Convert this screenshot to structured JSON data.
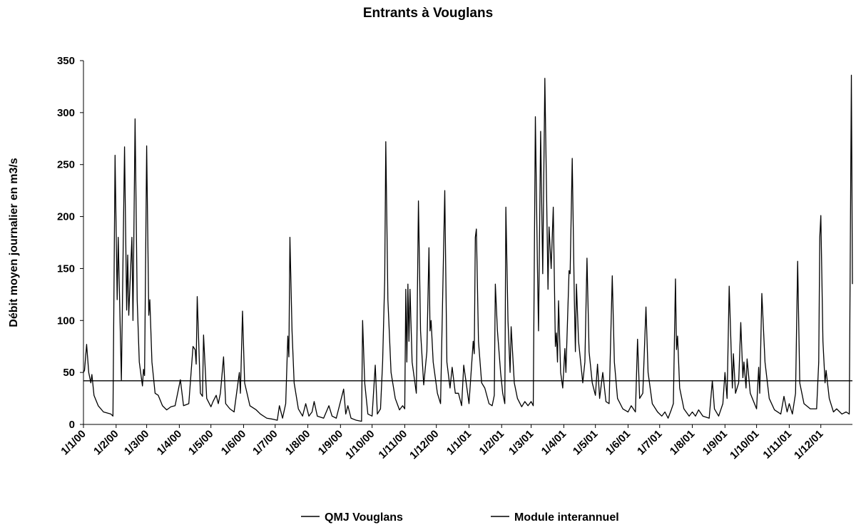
{
  "chart_data": {
    "type": "line",
    "title": "Entrants à Vouglans",
    "ylabel": "Débit moyen journalier en m3/s",
    "xlim": [
      "1/1/00",
      "31/12/01"
    ],
    "ylim": [
      0,
      350
    ],
    "yticks": [
      0,
      50,
      100,
      150,
      200,
      250,
      300,
      350
    ],
    "xticks": [
      "1/1/00",
      "1/2/00",
      "1/3/00",
      "1/4/00",
      "1/5/00",
      "1/6/00",
      "1/7/00",
      "1/8/00",
      "1/9/00",
      "1/10/00",
      "1/11/00",
      "1/12/00",
      "1/1/01",
      "1/2/01",
      "1/3/01",
      "1/4/01",
      "1/5/01",
      "1/6/01",
      "1/7/01",
      "1/8/01",
      "1/9/01",
      "1/10/01",
      "1/11/01",
      "1/12/01"
    ],
    "series": [
      {
        "name": "QMJ Vouglans",
        "color": "#000000",
        "x": [
          "1/1/00",
          "2/1/00",
          "4/1/00",
          "6/1/00",
          "8/1/00",
          "9/1/00",
          "11/1/00",
          "15/1/00",
          "20/1/00",
          "27/1/00",
          "29/1/00",
          "31/1/00",
          "2/2/00",
          "3/2/00",
          "6/2/00",
          "9/2/00",
          "11/2/00",
          "12/2/00",
          "13/2/00",
          "16/2/00",
          "17/2/00",
          "19/2/00",
          "21/2/00",
          "23/2/00",
          "26/2/00",
          "27/2/00",
          "28/2/00",
          "1/3/00",
          "3/3/00",
          "4/3/00",
          "6/3/00",
          "9/3/00",
          "12/3/00",
          "16/3/00",
          "20/3/00",
          "24/3/00",
          "28/3/00",
          "2/4/00",
          "5/4/00",
          "10/4/00",
          "14/4/00",
          "16/4/00",
          "17/4/00",
          "18/4/00",
          "21/4/00",
          "23/4/00",
          "24/4/00",
          "27/4/00",
          "1/5/00",
          "3/5/00",
          "6/5/00",
          "8/5/00",
          "10/5/00",
          "13/5/00",
          "15/5/00",
          "19/5/00",
          "23/5/00",
          "28/5/00",
          "29/5/00",
          "31/5/00",
          "2/6/00",
          "7/6/00",
          "13/6/00",
          "17/6/00",
          "23/6/00",
          "29/6/00",
          "3/7/00",
          "5/7/00",
          "8/7/00",
          "11/7/00",
          "13/7/00",
          "14/7/00",
          "15/7/00",
          "17/7/00",
          "19/7/00",
          "23/7/00",
          "27/7/00",
          "30/7/00",
          "2/8/00",
          "5/8/00",
          "7/8/00",
          "10/8/00",
          "16/8/00",
          "21/8/00",
          "24/8/00",
          "28/8/00",
          "4/9/00",
          "6/9/00",
          "8/9/00",
          "11/9/00",
          "16/9/00",
          "21/9/00",
          "22/9/00",
          "24/9/00",
          "27/9/00",
          "1/10/00",
          "4/10/00",
          "6/10/00",
          "9/10/00",
          "11/10/00",
          "13/10/00",
          "14/10/00",
          "16/10/00",
          "19/10/00",
          "23/10/00",
          "27/10/00",
          "30/10/00",
          "1/11/00",
          "2/11/00",
          "3/11/00",
          "4/11/00",
          "5/11/00",
          "6/11/00",
          "8/11/00",
          "12/11/00",
          "14/11/00",
          "16/11/00",
          "19/11/00",
          "22/11/00",
          "24/11/00",
          "25/11/00",
          "26/11/00",
          "28/11/00",
          "2/12/00",
          "5/12/00",
          "9/12/00",
          "11/12/00",
          "14/12/00",
          "16/12/00",
          "19/12/00",
          "22/12/00",
          "25/12/00",
          "27/12/00",
          "30/12/00",
          "1/1/01",
          "5/1/01",
          "6/1/01",
          "7/1/01",
          "8/1/01",
          "10/1/01",
          "13/1/01",
          "16/1/01",
          "20/1/01",
          "23/1/01",
          "25/1/01",
          "26/1/01",
          "28/1/01",
          "31/1/01",
          "2/2/01",
          "4/2/01",
          "5/2/01",
          "7/2/01",
          "9/2/01",
          "10/2/01",
          "13/2/01",
          "16/2/01",
          "20/2/01",
          "23/2/01",
          "26/2/01",
          "1/3/01",
          "3/3/01",
          "5/3/01",
          "7/3/01",
          "8/3/01",
          "10/3/01",
          "12/3/01",
          "14/3/01",
          "17/3/01",
          "18/3/01",
          "20/3/01",
          "22/3/01",
          "24/3/01",
          "25/3/01",
          "26/3/01",
          "27/3/01",
          "29/3/01",
          "31/3/01",
          "2/4/01",
          "3/4/01",
          "6/4/01",
          "7/4/01",
          "9/4/01",
          "11/4/01",
          "12/4/01",
          "13/4/01",
          "15/4/01",
          "19/4/01",
          "21/4/01",
          "23/4/01",
          "25/4/01",
          "28/4/01",
          "1/5/01",
          "3/5/01",
          "5/5/01",
          "8/5/01",
          "11/5/01",
          "14/5/01",
          "17/5/01",
          "19/5/01",
          "22/5/01",
          "27/5/01",
          "1/6/01",
          "4/6/01",
          "8/6/01",
          "10/6/01",
          "12/6/01",
          "15/6/01",
          "18/6/01",
          "20/6/01",
          "24/6/01",
          "29/6/01",
          "3/7/01",
          "6/7/01",
          "9/7/01",
          "12/7/01",
          "14/7/01",
          "16/7/01",
          "17/7/01",
          "18/7/01",
          "20/7/01",
          "24/7/01",
          "29/7/01",
          "1/8/01",
          "4/8/01",
          "7/8/01",
          "11/8/01",
          "17/8/01",
          "20/8/01",
          "22/8/01",
          "26/8/01",
          "30/8/01",
          "1/9/01",
          "3/9/01",
          "5/9/01",
          "8/9/01",
          "9/9/01",
          "11/9/01",
          "14/9/01",
          "16/9/01",
          "18/9/01",
          "19/9/01",
          "21/9/01",
          "22/9/01",
          "25/9/01",
          "29/9/01",
          "1/10/01",
          "3/10/01",
          "4/10/01",
          "6/10/01",
          "9/10/01",
          "13/10/01",
          "18/10/01",
          "24/10/01",
          "27/10/01",
          "30/10/01",
          "1/11/01",
          "4/11/01",
          "7/11/01",
          "9/11/01",
          "11/11/01",
          "15/11/01",
          "21/11/01",
          "27/11/01",
          "29/11/01",
          "30/11/01",
          "1/12/01",
          "3/12/01",
          "5/12/01",
          "6/12/01",
          "9/12/01",
          "13/12/01",
          "16/12/01",
          "21/12/01",
          "25/12/01",
          "28/12/01",
          "30/12/01",
          "31/12/01"
        ],
        "values": [
          50,
          52,
          77,
          50,
          40,
          48,
          28,
          18,
          12,
          10,
          8,
          259,
          120,
          180,
          42,
          267,
          110,
          163,
          105,
          180,
          100,
          294,
          120,
          60,
          37,
          53,
          47,
          268,
          105,
          120,
          60,
          30,
          28,
          18,
          14,
          17,
          18,
          43,
          18,
          20,
          75,
          72,
          58,
          123,
          30,
          27,
          86,
          25,
          17,
          22,
          28,
          20,
          30,
          65,
          20,
          15,
          12,
          50,
          30,
          109,
          40,
          18,
          14,
          10,
          6,
          5,
          4,
          18,
          6,
          20,
          85,
          65,
          180,
          90,
          40,
          15,
          8,
          20,
          8,
          12,
          22,
          8,
          6,
          18,
          8,
          6,
          34,
          10,
          18,
          6,
          4,
          3,
          100,
          40,
          10,
          8,
          57,
          10,
          15,
          60,
          140,
          272,
          120,
          50,
          25,
          14,
          18,
          15,
          130,
          60,
          135,
          80,
          130,
          60,
          30,
          215,
          90,
          38,
          70,
          170,
          90,
          100,
          60,
          30,
          20,
          225,
          60,
          35,
          55,
          30,
          30,
          18,
          57,
          35,
          20,
          80,
          68,
          180,
          188,
          80,
          40,
          35,
          20,
          18,
          28,
          135,
          90,
          50,
          30,
          20,
          209,
          100,
          50,
          94,
          40,
          25,
          17,
          22,
          18,
          22,
          18,
          296,
          150,
          90,
          282,
          145,
          333,
          130,
          190,
          150,
          209,
          75,
          88,
          60,
          119,
          50,
          35,
          73,
          50,
          148,
          145,
          256,
          120,
          70,
          135,
          80,
          40,
          60,
          160,
          70,
          40,
          28,
          58,
          25,
          50,
          22,
          20,
          143,
          60,
          25,
          15,
          12,
          18,
          12,
          82,
          25,
          30,
          113,
          50,
          20,
          12,
          8,
          12,
          6,
          14,
          20,
          140,
          72,
          85,
          35,
          15,
          8,
          12,
          8,
          14,
          8,
          6,
          42,
          15,
          8,
          20,
          50,
          25,
          133,
          35,
          68,
          30,
          40,
          98,
          45,
          60,
          35,
          63,
          30,
          20,
          15,
          55,
          30,
          126,
          60,
          25,
          14,
          10,
          27,
          12,
          20,
          10,
          30,
          157,
          40,
          20,
          15,
          15,
          60,
          180,
          201,
          80,
          40,
          52,
          25,
          12,
          15,
          10,
          12,
          10,
          336,
          135
        ]
      },
      {
        "name": "Module interannuel",
        "color": "#000000",
        "x": [
          "1/1/00",
          "31/12/01"
        ],
        "values": [
          42,
          42
        ]
      }
    ]
  }
}
